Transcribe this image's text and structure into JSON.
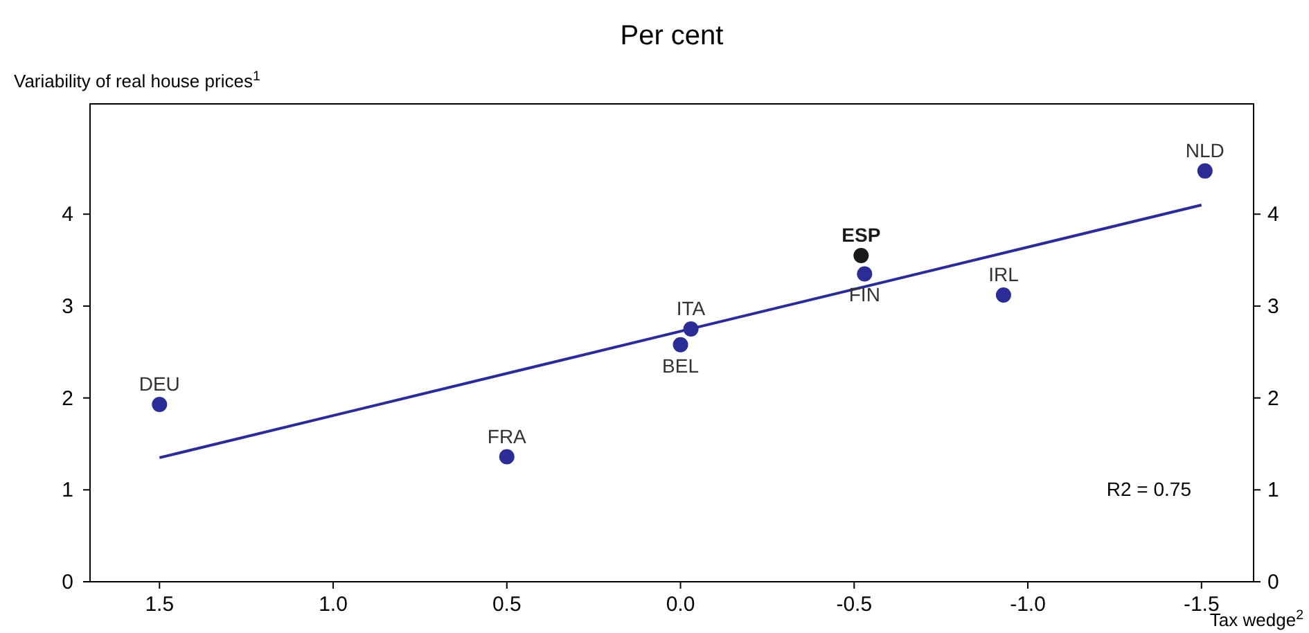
{
  "chart_data": {
    "type": "scatter",
    "title": "Per cent",
    "xlabel": "Tax wedge$^{2}$",
    "ylabel": "Variability of real house prices$^{1}$",
    "xlim": [
      1.7,
      -1.65
    ],
    "xticks": [
      {
        "value": 1.5,
        "label": "1.5"
      },
      {
        "value": 1.0,
        "label": "1.0"
      },
      {
        "value": 0.5,
        "label": "0.5"
      },
      {
        "value": 0,
        "label": "0.0"
      },
      {
        "value": -0.5,
        "label": "-0.5"
      },
      {
        "value": -1.0,
        "label": "-1.0"
      },
      {
        "value": -1.5,
        "label": "-1.5"
      }
    ],
    "ylim": [
      0,
      5.2
    ],
    "yticks": [
      0,
      1,
      2,
      3,
      4
    ],
    "y2lim": [
      0,
      5.2
    ],
    "y2ticks": [
      0,
      1,
      2,
      3,
      4
    ],
    "grid": false,
    "marker": "circle",
    "series": [
      {
        "type": "line",
        "color": "#2b2c96",
        "x": [
          1.5,
          -1.5
        ],
        "values": [
          1.35,
          4.1
        ],
        "marker": "none"
      },
      {
        "x": [
          1.5,
          0.5,
          0.0,
          -0.03,
          -0.52,
          -0.53,
          -0.93,
          -1.51
        ],
        "values": [
          1.93,
          1.36,
          2.58,
          2.75,
          3.55,
          3.35,
          3.12,
          4.47
        ],
        "colors": [
          "#2b2c96",
          "#2b2c96",
          "#2b2c96",
          "#2b2c96",
          "#1a1a1a",
          "#2b2c96",
          "#2b2c96",
          "#2b2c96"
        ]
      }
    ],
    "annotations": [
      {
        "text": "DEU",
        "x": 1.5,
        "y": 1.93
      },
      {
        "text": "FRA",
        "x": 0.5,
        "y": 1.36
      },
      {
        "text": "BEL",
        "x": 0.0,
        "y": 2.58
      },
      {
        "text": "ITA",
        "x": -0.03,
        "y": 2.75
      },
      {
        "text": "ESP",
        "x": -0.52,
        "y": 3.55
      },
      {
        "text": "FIN",
        "x": -0.53,
        "y": 3.35
      },
      {
        "text": "IRL",
        "x": -0.93,
        "y": 3.12
      },
      {
        "text": "NLD",
        "x": -1.51,
        "y": 4.47
      },
      "R2 = 0.75"
    ]
  }
}
